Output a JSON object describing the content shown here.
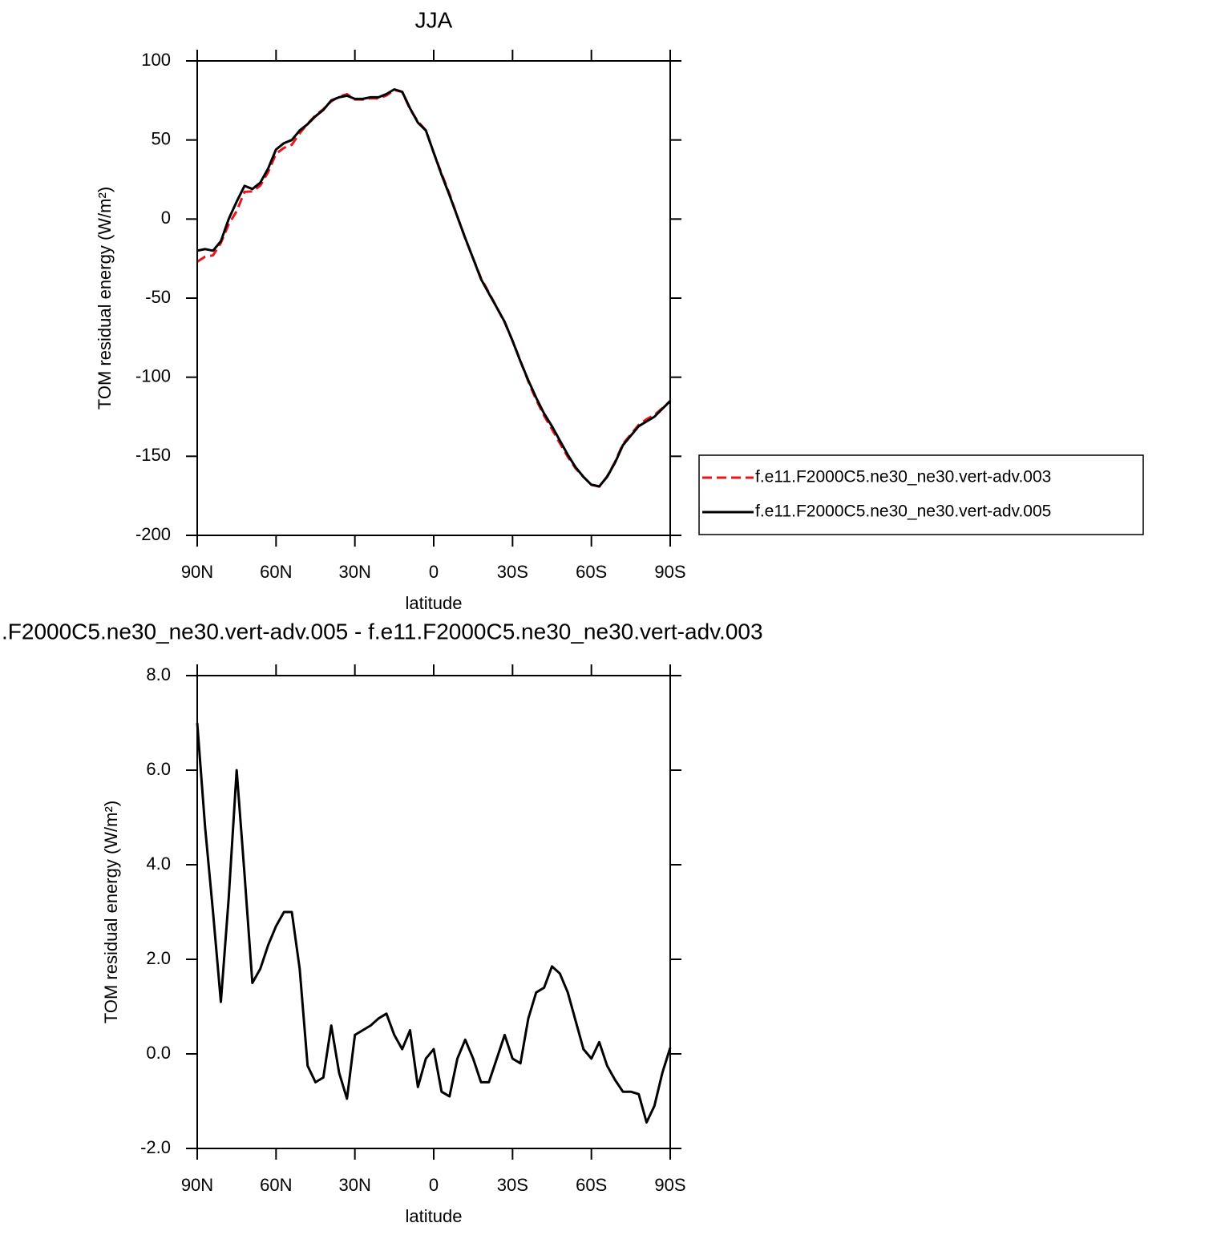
{
  "chart_data": [
    {
      "type": "line",
      "title": "JJA",
      "xlabel": "latitude",
      "ylabel": "TOM residual energy (W/m²)",
      "x": [
        90,
        87,
        84,
        81,
        78,
        75,
        72,
        69,
        66,
        63,
        60,
        57,
        54,
        51,
        48,
        45,
        42,
        39,
        36,
        33,
        30,
        27,
        24,
        21,
        18,
        15,
        12,
        9,
        6,
        3,
        0,
        -3,
        -6,
        -9,
        -12,
        -15,
        -18,
        -21,
        -24,
        -27,
        -30,
        -33,
        -36,
        -39,
        -42,
        -45,
        -48,
        -51,
        -54,
        -57,
        -60,
        -63,
        -66,
        -69,
        -72,
        -75,
        -78,
        -81,
        -84,
        -87,
        -90
      ],
      "xlim": [
        90,
        -90
      ],
      "xticks": [
        {
          "value": 90,
          "label": "90N"
        },
        {
          "value": 60,
          "label": "60N"
        },
        {
          "value": 30,
          "label": "30N"
        },
        0,
        {
          "value": -30,
          "label": "30S"
        },
        {
          "value": -60,
          "label": "60S"
        },
        {
          "value": -90,
          "label": "90S"
        }
      ],
      "ylim": [
        -200,
        100
      ],
      "yticks": [
        100,
        50,
        0,
        -50,
        -100,
        -150,
        -200
      ],
      "legend": "right",
      "series": [
        {
          "name": "f.e11.F2000C5.ne30_ne30.vert-adv.003",
          "color": "#e8151b",
          "dashed": true,
          "values": [
            -27,
            -23.8,
            -23,
            -15.1,
            -3.3,
            5,
            17.2,
            17.5,
            21.2,
            29.7,
            41.3,
            45,
            47,
            54.2,
            60.25,
            65.6,
            69.5,
            74.4,
            77.4,
            78.95,
            75.6,
            75.5,
            76.4,
            76.25,
            78.15,
            81.6,
            80.4,
            69.5,
            61.7,
            56.1,
            41.9,
            28.8,
            15.9,
            1.6,
            -12.3,
            -24.9,
            -37.4,
            -46.4,
            -55.9,
            -65.4,
            -76.9,
            -89.8,
            -102.75,
            -114.3,
            -124.4,
            -132.85,
            -141.7,
            -150.3,
            -157.7,
            -163.1,
            -167.9,
            -169.25,
            -162.75,
            -153.45,
            -142.2,
            -136.2,
            -130.15,
            -126.55,
            -123.9,
            -119.6,
            -115.13
          ]
        },
        {
          "name": "f.e11.F2000C5.ne30_ne30.vert-adv.005",
          "color": "#000000",
          "dashed": false,
          "values": [
            -20,
            -19,
            -20,
            -14,
            0,
            11,
            21,
            19,
            23,
            32,
            44,
            48,
            50,
            56,
            60,
            65,
            69,
            75,
            77,
            78,
            76,
            76,
            77,
            77,
            79,
            82,
            80.5,
            70,
            61,
            56,
            42,
            28,
            15,
            1.5,
            -12,
            -25,
            -38,
            -47,
            -56,
            -65,
            -77,
            -90,
            -102,
            -113,
            -123,
            -131,
            -140,
            -149,
            -157,
            -163,
            -168,
            -169,
            -163,
            -154,
            -143,
            -137,
            -131,
            -128,
            -125,
            -120,
            -115
          ]
        }
      ]
    },
    {
      "type": "line",
      "title": ".F2000C5.ne30_ne30.vert-adv.005 - f.e11.F2000C5.ne30_ne30.vert-adv.003",
      "xlabel": "latitude",
      "ylabel": "TOM residual energy (W/m²)",
      "x": [
        90,
        87,
        84,
        81,
        78,
        75,
        72,
        69,
        66,
        63,
        60,
        57,
        54,
        51,
        48,
        45,
        42,
        39,
        36,
        33,
        30,
        27,
        24,
        21,
        18,
        15,
        12,
        9,
        6,
        3,
        0,
        -3,
        -6,
        -9,
        -12,
        -15,
        -18,
        -21,
        -24,
        -27,
        -30,
        -33,
        -36,
        -39,
        -42,
        -45,
        -48,
        -51,
        -54,
        -57,
        -60,
        -63,
        -66,
        -69,
        -72,
        -75,
        -78,
        -81,
        -84,
        -87,
        -90
      ],
      "xlim": [
        90,
        -90
      ],
      "xticks": [
        {
          "value": 90,
          "label": "90N"
        },
        {
          "value": 60,
          "label": "60N"
        },
        {
          "value": 30,
          "label": "30N"
        },
        0,
        {
          "value": -30,
          "label": "30S"
        },
        {
          "value": -60,
          "label": "60S"
        },
        {
          "value": -90,
          "label": "90S"
        }
      ],
      "ylim": [
        -2,
        8
      ],
      "yticks": [
        {
          "value": 8,
          "label": "8.0"
        },
        {
          "value": 6,
          "label": "6.0"
        },
        {
          "value": 4,
          "label": "4.0"
        },
        {
          "value": 2,
          "label": "2.0"
        },
        {
          "value": 0,
          "label": "0.0"
        },
        {
          "value": -2,
          "label": "-2.0"
        }
      ],
      "series": [
        {
          "color": "#000000",
          "dashed": false,
          "values": [
            7.0,
            4.8,
            3.0,
            1.1,
            3.3,
            6.0,
            3.8,
            1.5,
            1.8,
            2.3,
            2.7,
            3.0,
            3.0,
            1.8,
            -0.25,
            -0.6,
            -0.5,
            0.6,
            -0.4,
            -0.95,
            0.4,
            0.5,
            0.6,
            0.75,
            0.85,
            0.4,
            0.1,
            0.5,
            -0.7,
            -0.1,
            0.1,
            -0.8,
            -0.9,
            -0.1,
            0.3,
            -0.1,
            -0.6,
            -0.6,
            -0.1,
            0.4,
            -0.1,
            -0.2,
            0.75,
            1.3,
            1.4,
            1.85,
            1.7,
            1.3,
            0.7,
            0.1,
            -0.1,
            0.25,
            -0.25,
            -0.55,
            -0.8,
            -0.8,
            -0.85,
            -1.45,
            -1.1,
            -0.4,
            0.13
          ]
        }
      ]
    }
  ]
}
